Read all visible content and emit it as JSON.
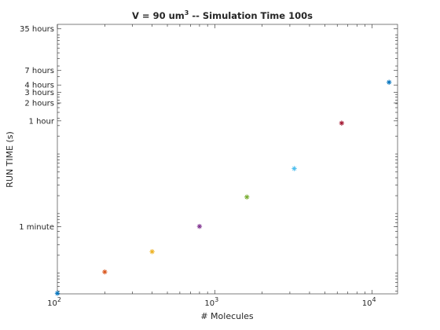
{
  "chart_data": {
    "type": "scatter",
    "title_main": "V = 90 um",
    "title_sup": "3",
    "title_rest": " -- Simulation Time 100s",
    "xlabel": "# Molecules",
    "ylabel": "RUN TIME (s)",
    "x_scale": "log",
    "y_scale": "log",
    "xlim": [
      100,
      14500
    ],
    "ylim": [
      4.5,
      150000
    ],
    "x_ticks": [
      {
        "value": 100,
        "base": "10",
        "exp": "2"
      },
      {
        "value": 1000,
        "base": "10",
        "exp": "3"
      },
      {
        "value": 10000,
        "base": "10",
        "exp": "4"
      }
    ],
    "y_ticks": [
      {
        "value": 60,
        "label": "1 minute"
      },
      {
        "value": 3600,
        "label": "1 hour"
      },
      {
        "value": 7200,
        "label": "2 hours"
      },
      {
        "value": 10800,
        "label": "3 hours"
      },
      {
        "value": 14400,
        "label": "4 hours"
      },
      {
        "value": 25200,
        "label": "7 hours"
      },
      {
        "value": 126000,
        "label": "35 hours"
      }
    ],
    "marker": "*",
    "grid": false,
    "points": [
      {
        "x": 100,
        "y": 4.6,
        "color": "#0072BD"
      },
      {
        "x": 200,
        "y": 10.5,
        "color": "#D95319"
      },
      {
        "x": 400,
        "y": 23,
        "color": "#EDB120"
      },
      {
        "x": 800,
        "y": 61,
        "color": "#7E2F8E"
      },
      {
        "x": 1600,
        "y": 190,
        "color": "#77AC30"
      },
      {
        "x": 3200,
        "y": 570,
        "color": "#4DBEEE"
      },
      {
        "x": 6400,
        "y": 3300,
        "color": "#A2142F"
      },
      {
        "x": 12800,
        "y": 16000,
        "color": "#0072BD"
      }
    ]
  }
}
